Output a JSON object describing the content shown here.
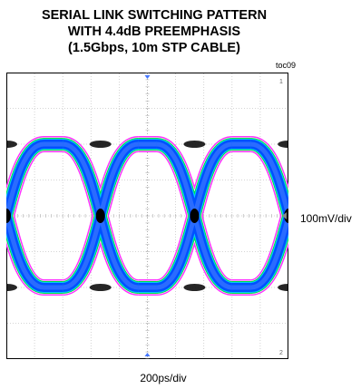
{
  "chart_data": {
    "type": "eye-diagram",
    "title_lines": [
      "SERIAL LINK SWITCHING PATTERN",
      "WITH 4.4dB PREEMPHASIS",
      "(1.5Gbps, 10m STP CABLE)"
    ],
    "figure_code": "toc09",
    "vertical_scale_label": "100mV/div",
    "horizontal_scale_label": "200ps/div",
    "bit_rate_gbps": 1.5,
    "unit_interval_ps": 667,
    "time_per_div_ps": 200,
    "volts_per_div_mv": 100,
    "divisions": {
      "horizontal": 10,
      "vertical": 8
    },
    "grid": true,
    "crossing_times_ps": [
      0,
      667,
      1334,
      2001
    ],
    "levels_mv": {
      "high": 200,
      "low": -200,
      "crossing": 0
    },
    "trace_colors": {
      "outer_envelope": "#ff33ff",
      "mid_band": "#00e040",
      "core_band": "#0050ff",
      "dense_center": "#000000"
    },
    "grid_color": "#c8c8c8",
    "markers": [
      "1",
      "2"
    ]
  }
}
